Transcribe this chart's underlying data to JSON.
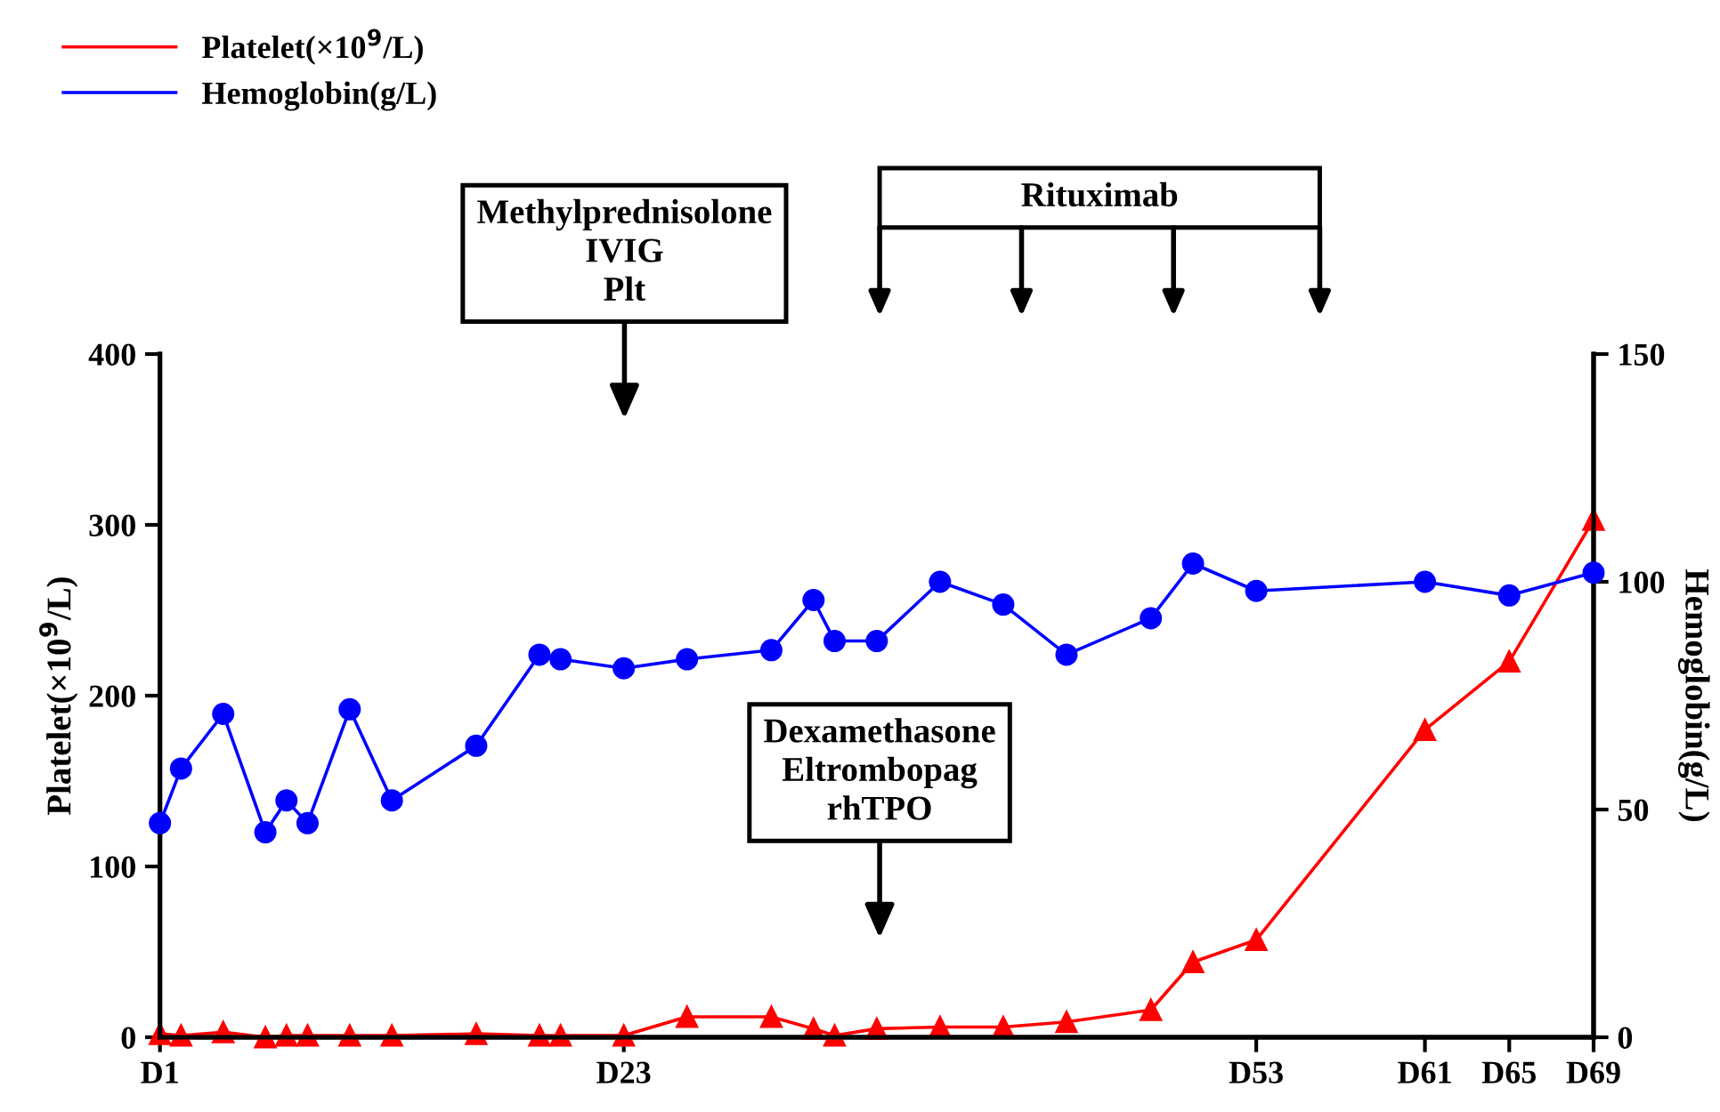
{
  "chart_data": {
    "type": "line",
    "ylabel": "Platelet(×10$^{9}$/L)",
    "y2label": "Hemoglobin(g/L)",
    "categories": [
      "D1",
      null,
      null,
      null,
      null,
      null,
      null,
      null,
      null,
      null,
      null,
      null,
      null,
      null,
      null,
      null,
      null,
      null,
      null,
      null,
      null,
      null,
      "D23",
      null,
      null,
      null,
      null,
      null,
      null,
      null,
      null,
      null,
      null,
      null,
      null,
      null,
      null,
      null,
      null,
      null,
      null,
      null,
      null,
      null,
      null,
      null,
      null,
      null,
      null,
      null,
      null,
      null,
      "D53",
      null,
      null,
      null,
      null,
      null,
      null,
      null,
      "D61",
      null,
      null,
      null,
      "D65",
      null,
      null,
      null,
      "D69"
    ],
    "series": [
      {
        "name": "Platelet(×10$^{9}$/L)",
        "color": "#ff0000",
        "marker": "triangle",
        "values": [
          2,
          1,
          null,
          3,
          null,
          0,
          1,
          1,
          null,
          1,
          null,
          1,
          null,
          null,
          null,
          2,
          null,
          null,
          1,
          1,
          null,
          null,
          1,
          null,
          null,
          12,
          null,
          null,
          null,
          12,
          null,
          5,
          1,
          null,
          5,
          null,
          null,
          6,
          null,
          null,
          6,
          null,
          null,
          9,
          null,
          null,
          null,
          16,
          null,
          44,
          null,
          null,
          57,
          null,
          null,
          null,
          null,
          null,
          null,
          null,
          180,
          null,
          null,
          null,
          220,
          null,
          null,
          null,
          303
        ]
      },
      {
        "name": "Hemoglobin(g/L)",
        "color": "#0000ff",
        "marker": "circle",
        "axis": "y2",
        "values": [
          47,
          59,
          null,
          71,
          null,
          45,
          52,
          47,
          null,
          72,
          null,
          52,
          null,
          null,
          null,
          64,
          null,
          null,
          84,
          83,
          null,
          null,
          81,
          null,
          null,
          83,
          null,
          null,
          null,
          85,
          null,
          96,
          87,
          null,
          87,
          null,
          null,
          100,
          null,
          null,
          95,
          null,
          null,
          84,
          null,
          null,
          null,
          92,
          null,
          104,
          null,
          null,
          98,
          null,
          null,
          null,
          null,
          null,
          null,
          null,
          100,
          null,
          null,
          null,
          97,
          null,
          null,
          null,
          102
        ]
      }
    ],
    "ylim": [
      0,
      400
    ],
    "yticks": [
      0,
      100,
      200,
      300,
      400
    ],
    "y2lim": [
      0,
      150
    ],
    "y2ticks": [
      0,
      50,
      100,
      150
    ],
    "annotations": [
      "Methylprednisolone\nIVIG\nPlt",
      "Dexamethasone\nEltrombopag\nrhTPO",
      "Rituximab"
    ],
    "grid": false,
    "legend": "top left",
    "line_style": "solid"
  }
}
